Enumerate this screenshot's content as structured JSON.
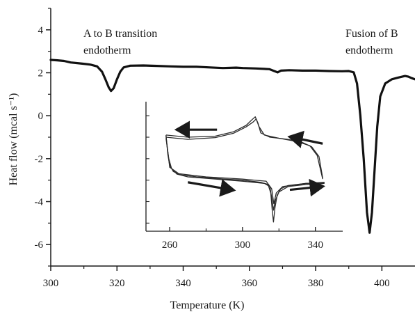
{
  "chart_data": [
    {
      "type": "line",
      "xlabel": "Temperature (K)",
      "ylabel": "Heat flow (mcal s⁻¹)",
      "xlim": [
        300,
        410
      ],
      "ylim": [
        -7,
        5
      ],
      "x_ticks": [
        300,
        320,
        340,
        360,
        380,
        400
      ],
      "y_ticks": [
        -6,
        -4,
        -2,
        0,
        2,
        4
      ],
      "grid": false,
      "annotations": [
        {
          "lines": [
            "A to B transition",
            "endotherm"
          ],
          "x": 301,
          "y": 3.8
        },
        {
          "lines": [
            "Fusion of B",
            "endotherm"
          ],
          "x": 391,
          "y": 3.8
        }
      ],
      "series": [
        {
          "points": [
            [
              300,
              2.6
            ],
            [
              302,
              2.58
            ],
            [
              304,
              2.55
            ],
            [
              306,
              2.48
            ],
            [
              308,
              2.45
            ],
            [
              310,
              2.42
            ],
            [
              312,
              2.38
            ],
            [
              314,
              2.3
            ],
            [
              315.5,
              2.05
            ],
            [
              316.5,
              1.7
            ],
            [
              317.5,
              1.32
            ],
            [
              318.2,
              1.15
            ],
            [
              319,
              1.28
            ],
            [
              320,
              1.7
            ],
            [
              321,
              2.05
            ],
            [
              322,
              2.25
            ],
            [
              324,
              2.33
            ],
            [
              328,
              2.34
            ],
            [
              332,
              2.32
            ],
            [
              336,
              2.3
            ],
            [
              340,
              2.28
            ],
            [
              344,
              2.28
            ],
            [
              348,
              2.25
            ],
            [
              352,
              2.22
            ],
            [
              356,
              2.24
            ],
            [
              358,
              2.22
            ],
            [
              362,
              2.2
            ],
            [
              366,
              2.17
            ],
            [
              367.5,
              2.08
            ],
            [
              368.5,
              2.02
            ],
            [
              369.5,
              2.1
            ],
            [
              372,
              2.12
            ],
            [
              376,
              2.1
            ],
            [
              380,
              2.1
            ],
            [
              384,
              2.08
            ],
            [
              388,
              2.07
            ],
            [
              390,
              2.08
            ],
            [
              391.5,
              2.02
            ],
            [
              392.5,
              1.5
            ],
            [
              393.5,
              0.0
            ],
            [
              394.5,
              -2.0
            ],
            [
              395.5,
              -4.5
            ],
            [
              396.3,
              -5.45
            ],
            [
              397,
              -4.5
            ],
            [
              397.8,
              -2.5
            ],
            [
              398.6,
              -0.5
            ],
            [
              399.5,
              0.9
            ],
            [
              401,
              1.5
            ],
            [
              403,
              1.7
            ],
            [
              405,
              1.78
            ],
            [
              407,
              1.85
            ],
            [
              408,
              1.82
            ],
            [
              409,
              1.75
            ],
            [
              410,
              1.7
            ]
          ]
        }
      ]
    },
    {
      "type": "line",
      "role": "inset",
      "xlim": [
        247,
        355
      ],
      "x_ticks": [
        260,
        300,
        340
      ],
      "grid": false,
      "series": [
        {
          "points": [
            [
              258,
              -0.9
            ],
            [
              270,
              -1.0
            ],
            [
              285,
              -0.95
            ],
            [
              295,
              -0.75
            ],
            [
              302,
              -0.45
            ],
            [
              305,
              -0.2
            ],
            [
              307,
              -0.05
            ],
            [
              308.5,
              -0.35
            ],
            [
              310,
              -0.8
            ],
            [
              315,
              -1.0
            ],
            [
              325,
              -1.1
            ],
            [
              333,
              -1.25
            ],
            [
              338,
              -1.45
            ],
            [
              342,
              -1.9
            ],
            [
              344,
              -2.9
            ]
          ]
        },
        {
          "points": [
            [
              258,
              -1.0
            ],
            [
              270,
              -1.1
            ],
            [
              285,
              -1.02
            ],
            [
              295,
              -0.82
            ],
            [
              302,
              -0.52
            ],
            [
              306,
              -0.28
            ],
            [
              307.5,
              -0.15
            ],
            [
              309,
              -0.5
            ],
            [
              312,
              -0.9
            ],
            [
              320,
              -1.05
            ],
            [
              330,
              -1.2
            ],
            [
              337,
              -1.4
            ],
            [
              341,
              -1.85
            ],
            [
              344,
              -2.95
            ]
          ]
        },
        {
          "points": [
            [
              258,
              -0.9
            ],
            [
              259,
              -1.8
            ],
            [
              260,
              -2.3
            ],
            [
              262,
              -2.6
            ],
            [
              266,
              -2.75
            ],
            [
              275,
              -2.85
            ],
            [
              290,
              -2.95
            ],
            [
              300,
              -3.0
            ],
            [
              310,
              -3.1
            ],
            [
              314,
              -3.2
            ],
            [
              315.5,
              -3.6
            ],
            [
              316.3,
              -4.4
            ],
            [
              317,
              -4.95
            ],
            [
              317.8,
              -4.3
            ],
            [
              319,
              -3.7
            ],
            [
              321,
              -3.4
            ],
            [
              325,
              -3.25
            ],
            [
              335,
              -3.15
            ],
            [
              345,
              -3.1
            ]
          ]
        },
        {
          "points": [
            [
              258,
              -1.05
            ],
            [
              259.5,
              -2.0
            ],
            [
              261,
              -2.45
            ],
            [
              264,
              -2.72
            ],
            [
              270,
              -2.85
            ],
            [
              285,
              -2.95
            ],
            [
              300,
              -3.05
            ],
            [
              312,
              -3.15
            ],
            [
              315,
              -3.3
            ],
            [
              316.2,
              -3.9
            ],
            [
              317,
              -4.4
            ],
            [
              318,
              -3.95
            ],
            [
              320,
              -3.55
            ],
            [
              325,
              -3.3
            ],
            [
              335,
              -3.2
            ],
            [
              345,
              -3.15
            ]
          ]
        },
        {
          "points": [
            [
              258,
              -0.95
            ],
            [
              260,
              -2.4
            ],
            [
              265,
              -2.7
            ],
            [
              280,
              -2.85
            ],
            [
              300,
              -2.95
            ],
            [
              313,
              -3.05
            ],
            [
              316,
              -3.4
            ],
            [
              317.2,
              -4.1
            ],
            [
              318.5,
              -3.6
            ],
            [
              322,
              -3.3
            ],
            [
              335,
              -3.15
            ],
            [
              345,
              -3.12
            ]
          ]
        }
      ],
      "direction_arrows": [
        {
          "from": [
            286,
            -0.65
          ],
          "to": [
            265,
            -0.65
          ]
        },
        {
          "from": [
            344,
            -1.3
          ],
          "to": [
            327,
            -1.0
          ]
        },
        {
          "from": [
            270,
            -3.1
          ],
          "to": [
            294,
            -3.45
          ]
        },
        {
          "from": [
            326,
            -3.45
          ],
          "to": [
            343,
            -3.3
          ]
        }
      ]
    }
  ]
}
